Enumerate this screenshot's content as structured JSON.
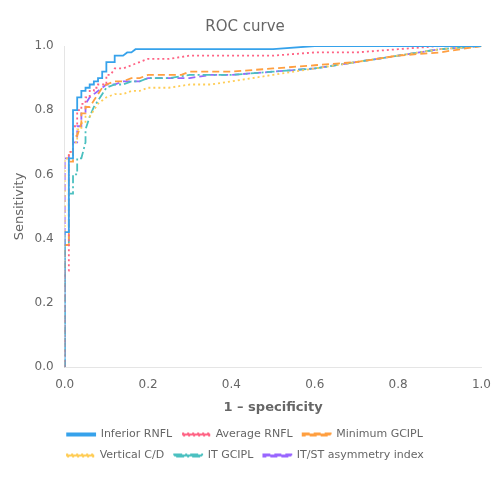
{
  "chart_data": {
    "type": "line",
    "title": "ROC curve",
    "x_label": "1 – specificity",
    "y_label": "Sensitivity",
    "xlim": [
      0.0,
      1.0
    ],
    "ylim": [
      0.0,
      1.0
    ],
    "xticks": [
      {
        "value": 0.0,
        "label": "0.0"
      },
      0.2,
      0.4,
      0.6,
      0.8,
      {
        "value": 1.0,
        "label": "1.0"
      }
    ],
    "yticks": [
      {
        "value": 0.0,
        "label": "0.0"
      },
      0.2,
      0.4,
      0.6,
      0.8,
      {
        "value": 1.0,
        "label": "1.0"
      }
    ],
    "grid": false,
    "legend": "bottom",
    "series": [
      {
        "name": "Inferior RNFL",
        "line_style": "solid",
        "x": [
          0.0,
          0.0,
          0.0,
          0.0,
          0.01,
          0.01,
          0.02,
          0.02,
          0.03,
          0.03,
          0.04,
          0.04,
          0.05,
          0.05,
          0.06,
          0.06,
          0.07,
          0.07,
          0.08,
          0.08,
          0.09,
          0.09,
          0.1,
          0.1,
          0.12,
          0.12,
          0.14,
          0.15,
          0.16,
          0.17,
          0.2,
          0.25,
          0.3,
          0.4,
          0.5,
          0.6,
          0.7,
          0.8,
          0.9,
          1.0
        ],
        "values": [
          0.0,
          0.3,
          0.41,
          0.42,
          0.42,
          0.65,
          0.65,
          0.8,
          0.8,
          0.84,
          0.84,
          0.86,
          0.86,
          0.87,
          0.87,
          0.88,
          0.88,
          0.89,
          0.89,
          0.9,
          0.9,
          0.92,
          0.92,
          0.95,
          0.95,
          0.97,
          0.97,
          0.98,
          0.98,
          0.99,
          0.99,
          0.99,
          0.99,
          0.99,
          0.99,
          1.0,
          1.0,
          1.0,
          1.0,
          1.0
        ]
      },
      {
        "name": "Average RNFL",
        "line_style": "dotted",
        "x": [
          0.0,
          0.0,
          0.0,
          0.01,
          0.01,
          0.02,
          0.02,
          0.03,
          0.03,
          0.04,
          0.04,
          0.05,
          0.05,
          0.06,
          0.06,
          0.07,
          0.07,
          0.08,
          0.08,
          0.09,
          0.1,
          0.1,
          0.11,
          0.12,
          0.14,
          0.16,
          0.18,
          0.2,
          0.25,
          0.3,
          0.4,
          0.5,
          0.6,
          0.7,
          0.8,
          0.9,
          1.0
        ],
        "values": [
          0.0,
          0.3,
          0.3,
          0.3,
          0.67,
          0.67,
          0.75,
          0.75,
          0.8,
          0.8,
          0.82,
          0.82,
          0.84,
          0.84,
          0.86,
          0.86,
          0.87,
          0.87,
          0.88,
          0.88,
          0.88,
          0.91,
          0.91,
          0.93,
          0.93,
          0.94,
          0.95,
          0.96,
          0.96,
          0.97,
          0.97,
          0.97,
          0.98,
          0.98,
          0.99,
          1.0,
          1.0
        ]
      },
      {
        "name": "Minimum GCIPL",
        "line_style": "dashed",
        "x": [
          0.0,
          0.0,
          0.01,
          0.01,
          0.02,
          0.02,
          0.03,
          0.04,
          0.04,
          0.05,
          0.05,
          0.06,
          0.07,
          0.08,
          0.09,
          0.1,
          0.12,
          0.14,
          0.16,
          0.18,
          0.2,
          0.22,
          0.25,
          0.28,
          0.3,
          0.35,
          0.4,
          0.5,
          0.6,
          0.7,
          0.8,
          0.9,
          1.0
        ],
        "values": [
          0.0,
          0.38,
          0.38,
          0.64,
          0.64,
          0.72,
          0.72,
          0.76,
          0.79,
          0.79,
          0.81,
          0.81,
          0.83,
          0.85,
          0.87,
          0.88,
          0.89,
          0.89,
          0.9,
          0.9,
          0.91,
          0.91,
          0.91,
          0.91,
          0.92,
          0.92,
          0.92,
          0.93,
          0.94,
          0.95,
          0.97,
          0.98,
          1.0
        ]
      },
      {
        "name": "Vertical C/D",
        "line_style": "dotted",
        "x": [
          0.0,
          0.0,
          0.01,
          0.01,
          0.02,
          0.02,
          0.03,
          0.03,
          0.04,
          0.04,
          0.05,
          0.05,
          0.06,
          0.07,
          0.08,
          0.09,
          0.1,
          0.12,
          0.14,
          0.16,
          0.18,
          0.2,
          0.25,
          0.3,
          0.35,
          0.4,
          0.5,
          0.6,
          0.7,
          0.8,
          0.9,
          1.0
        ],
        "values": [
          0.0,
          0.65,
          0.65,
          0.67,
          0.67,
          0.7,
          0.7,
          0.74,
          0.74,
          0.76,
          0.76,
          0.78,
          0.78,
          0.8,
          0.82,
          0.83,
          0.84,
          0.85,
          0.85,
          0.86,
          0.86,
          0.87,
          0.87,
          0.88,
          0.88,
          0.89,
          0.91,
          0.93,
          0.95,
          0.97,
          0.99,
          1.0
        ]
      },
      {
        "name": "IT GCIPL",
        "line_style": "dashdot",
        "x": [
          0.0,
          0.0,
          0.01,
          0.01,
          0.02,
          0.02,
          0.03,
          0.03,
          0.04,
          0.05,
          0.05,
          0.06,
          0.07,
          0.08,
          0.09,
          0.1,
          0.12,
          0.14,
          0.16,
          0.18,
          0.2,
          0.25,
          0.3,
          0.35,
          0.4,
          0.5,
          0.6,
          0.7,
          0.8,
          0.9,
          1.0
        ],
        "values": [
          0.0,
          0.38,
          0.38,
          0.54,
          0.54,
          0.6,
          0.6,
          0.65,
          0.65,
          0.7,
          0.74,
          0.78,
          0.81,
          0.83,
          0.85,
          0.87,
          0.88,
          0.88,
          0.89,
          0.89,
          0.9,
          0.9,
          0.91,
          0.91,
          0.91,
          0.92,
          0.93,
          0.95,
          0.97,
          0.99,
          1.0
        ]
      },
      {
        "name": "IT/ST asymmetry index",
        "line_style": "dashed",
        "x": [
          0.0,
          0.0,
          0.01,
          0.01,
          0.02,
          0.02,
          0.03,
          0.03,
          0.04,
          0.04,
          0.05,
          0.05,
          0.06,
          0.07,
          0.08,
          0.09,
          0.1,
          0.12,
          0.14,
          0.16,
          0.18,
          0.2,
          0.25,
          0.3,
          0.35,
          0.4,
          0.5,
          0.6,
          0.7,
          0.8,
          0.9,
          1.0
        ],
        "values": [
          0.0,
          0.65,
          0.65,
          0.66,
          0.66,
          0.7,
          0.7,
          0.75,
          0.75,
          0.79,
          0.79,
          0.82,
          0.84,
          0.85,
          0.86,
          0.87,
          0.88,
          0.88,
          0.89,
          0.89,
          0.89,
          0.9,
          0.9,
          0.9,
          0.91,
          0.91,
          0.92,
          0.93,
          0.95,
          0.97,
          0.99,
          1.0
        ]
      }
    ]
  }
}
